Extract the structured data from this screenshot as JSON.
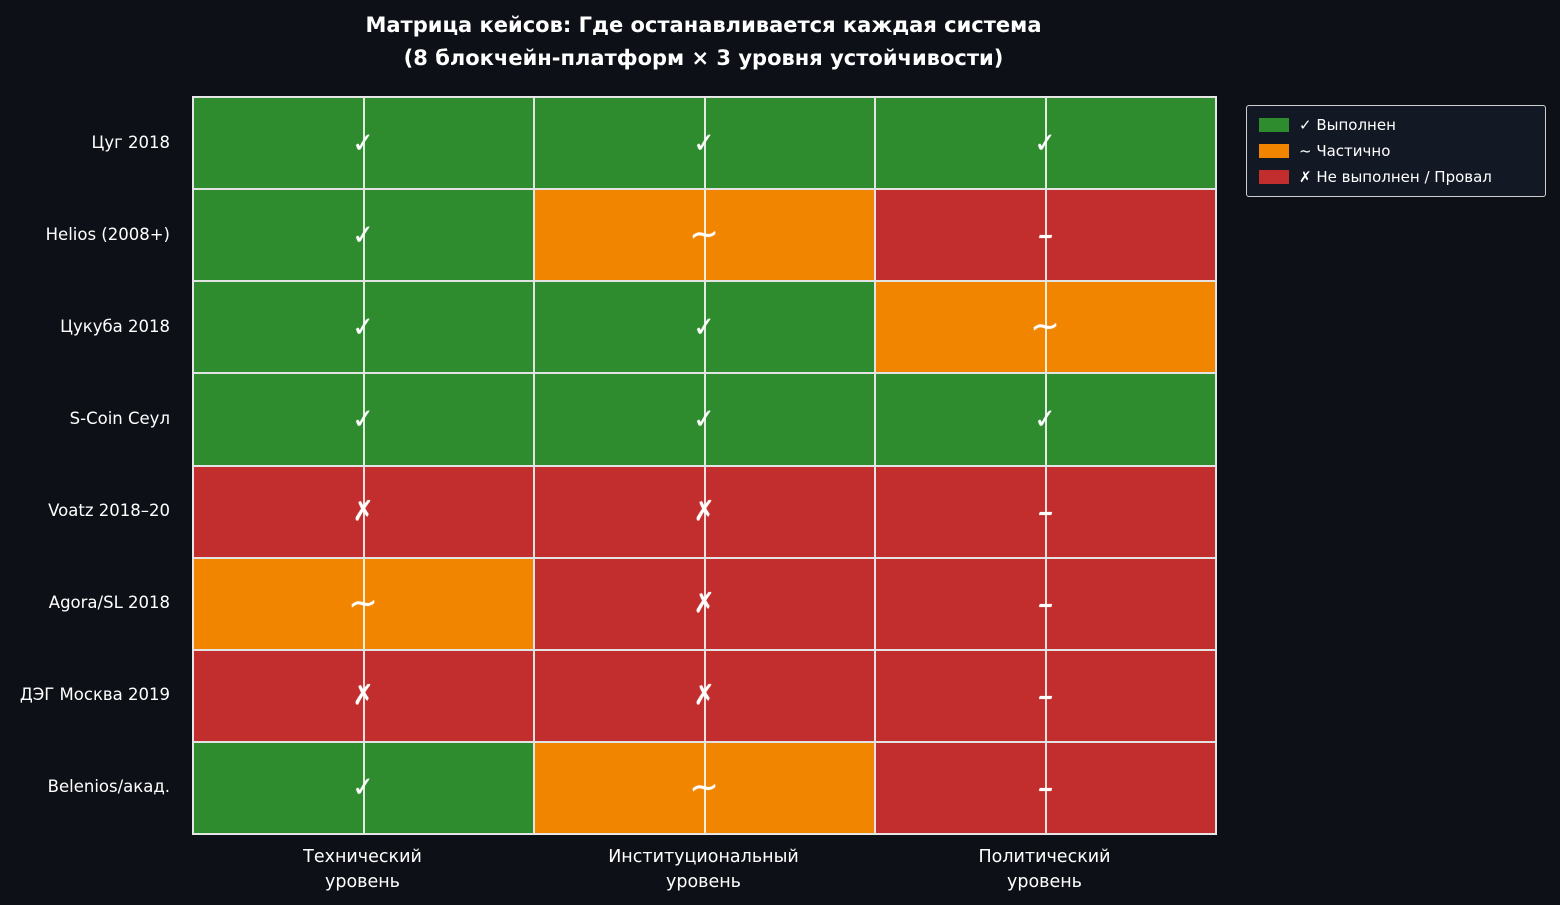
{
  "title": {
    "line1": "Матрица кейсов: Где останавливается каждая система",
    "line2": "(8 блокчейн-платформ × 3 уровня устойчивости)"
  },
  "legend": {
    "items": [
      {
        "status": "done",
        "label": "✓ Выполнен",
        "color": "#2e8b2e"
      },
      {
        "status": "partial",
        "label": "~ Частично",
        "color": "#f28500"
      },
      {
        "status": "fail",
        "label": "✗ Не выполнен / Провал",
        "color": "#c22d2d"
      }
    ]
  },
  "chart_data": {
    "type": "heatmap",
    "title": "Матрица кейсов: Где останавливается каждая система (8 блокчейн-платформ × 3 уровня устойчивости)",
    "rows": [
      "Цуг 2018",
      "Helios (2008+)",
      "Цукуба 2018",
      "S-Coin Сеул",
      "Voatz 2018–20",
      "Agora/SL 2018",
      "ДЭГ Москва 2019",
      "Belenios/акад."
    ],
    "columns": [
      "Технический уровень",
      "Институциональный уровень",
      "Политический уровень"
    ],
    "column_labels": [
      "Технический\nуровень",
      "Институциональный\nуровень",
      "Политический\nуровень"
    ],
    "colors": {
      "done": "#2e8b2e",
      "partial": "#f28500",
      "fail": "#c22d2d"
    },
    "background": "#0d1117",
    "legend_position": "upper right",
    "grid": "vertical center lines + white cell edges",
    "cells": [
      [
        {
          "status": "done",
          "symbol": "✓"
        },
        {
          "status": "done",
          "symbol": "✓"
        },
        {
          "status": "done",
          "symbol": "✓"
        }
      ],
      [
        {
          "status": "done",
          "symbol": "✓"
        },
        {
          "status": "partial",
          "symbol": "~"
        },
        {
          "status": "fail",
          "symbol": "–"
        }
      ],
      [
        {
          "status": "done",
          "symbol": "✓"
        },
        {
          "status": "done",
          "symbol": "✓"
        },
        {
          "status": "partial",
          "symbol": "~"
        }
      ],
      [
        {
          "status": "done",
          "symbol": "✓"
        },
        {
          "status": "done",
          "symbol": "✓"
        },
        {
          "status": "done",
          "symbol": "✓"
        }
      ],
      [
        {
          "status": "fail",
          "symbol": "✗"
        },
        {
          "status": "fail",
          "symbol": "✗"
        },
        {
          "status": "fail",
          "symbol": "–"
        }
      ],
      [
        {
          "status": "partial",
          "symbol": "~"
        },
        {
          "status": "fail",
          "symbol": "✗"
        },
        {
          "status": "fail",
          "symbol": "–"
        }
      ],
      [
        {
          "status": "fail",
          "symbol": "✗"
        },
        {
          "status": "fail",
          "symbol": "✗"
        },
        {
          "status": "fail",
          "symbol": "–"
        }
      ],
      [
        {
          "status": "done",
          "symbol": "✓"
        },
        {
          "status": "partial",
          "symbol": "~"
        },
        {
          "status": "fail",
          "symbol": "–"
        }
      ]
    ]
  }
}
